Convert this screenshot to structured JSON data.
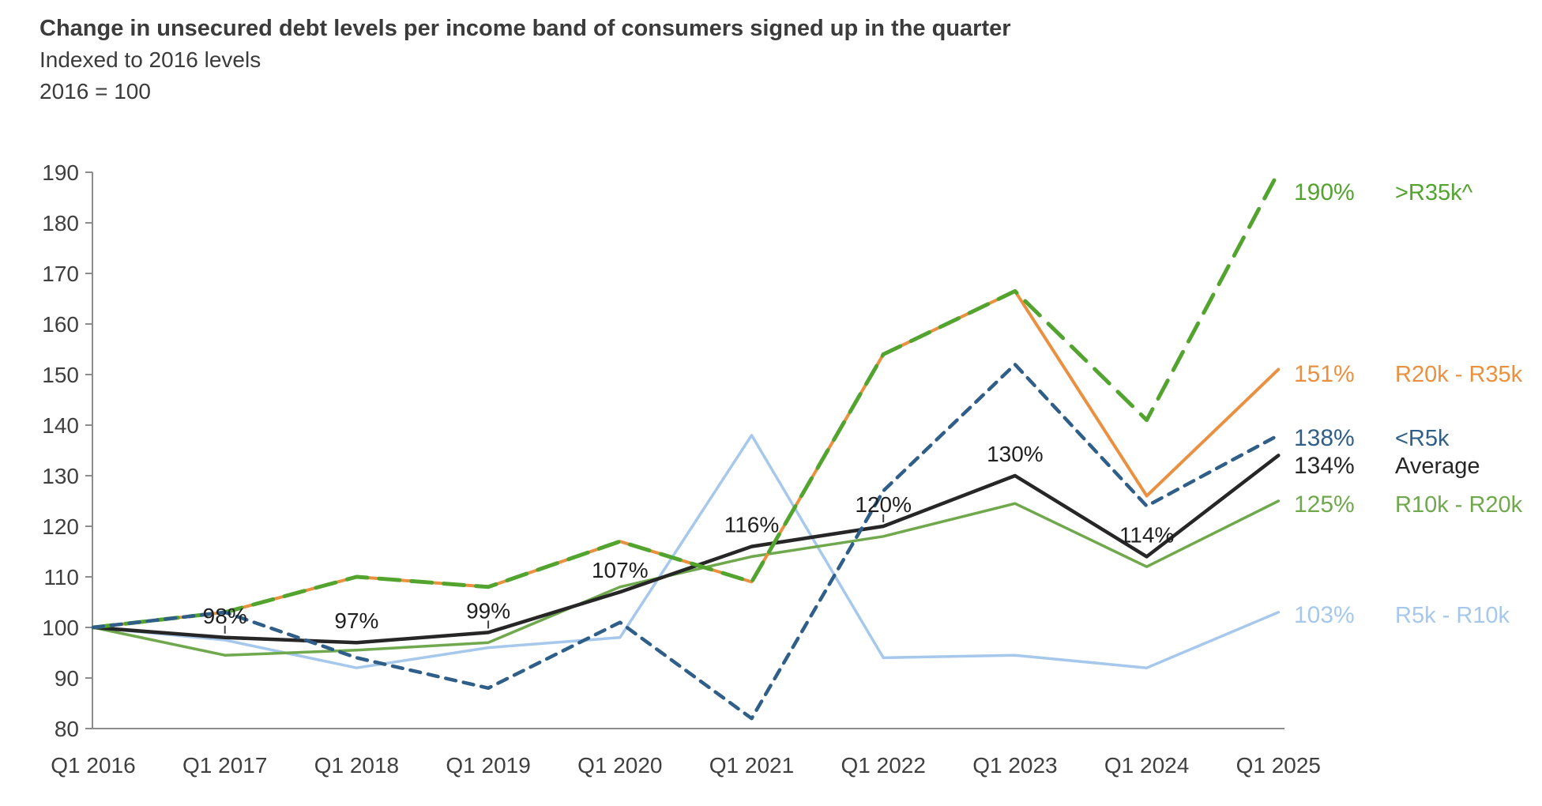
{
  "header": {
    "title": "Change in unsecured debt levels per income band of consumers signed up in the quarter",
    "subtitle": "Indexed to 2016 levels",
    "index_note": "2016 = 100"
  },
  "chart_data": {
    "type": "line",
    "title": "Change in unsecured debt levels per income band of consumers signed up in the quarter",
    "subtitle": "Indexed to 2016 levels",
    "note": "2016 = 100",
    "categories": [
      "Q1 2016",
      "Q1 2017",
      "Q1 2018",
      "Q1 2019",
      "Q1 2020",
      "Q1 2021",
      "Q1 2022",
      "Q1 2023",
      "Q1 2024",
      "Q1 2025"
    ],
    "ylim": [
      80,
      190
    ],
    "ytick_step": 10,
    "yticks": [
      80,
      90,
      100,
      110,
      120,
      130,
      140,
      150,
      160,
      170,
      180,
      190
    ],
    "grid": false,
    "legend_position": "right-end-labels",
    "series": [
      {
        "name": ">R35k^",
        "slug": "gt-r35k",
        "color": "#52A42F",
        "style": "dashed-long",
        "end_label": "190%",
        "values": [
          100,
          103,
          110,
          108,
          117,
          109,
          154,
          166.5,
          141,
          190
        ]
      },
      {
        "name": "R20k - R35k",
        "slug": "r20k-r35k",
        "color": "#EA9041",
        "style": "solid",
        "end_label": "151%",
        "values": [
          100,
          103,
          110,
          108,
          117,
          109,
          154,
          166.5,
          126,
          151
        ]
      },
      {
        "name": "<R5k",
        "slug": "lt-r5k",
        "color": "#2F5F88",
        "style": "dashed",
        "end_label": "138%",
        "values": [
          100,
          103,
          94,
          88,
          101,
          82,
          127,
          152,
          124,
          138
        ]
      },
      {
        "name": "Average",
        "slug": "average",
        "color": "#262626",
        "style": "solid",
        "end_label": "134%",
        "values": [
          100,
          98,
          97,
          99,
          107,
          116,
          120,
          130,
          114,
          134
        ]
      },
      {
        "name": "R10k - R20k",
        "slug": "r10k-r20k",
        "color": "#6FA84D",
        "style": "solid",
        "end_label": "125%",
        "values": [
          100,
          94.5,
          95.5,
          97,
          108,
          114,
          118,
          124.5,
          112,
          125
        ]
      },
      {
        "name": "R5k - R10k",
        "slug": "r5k-r10k",
        "color": "#A5C8EC",
        "style": "solid",
        "end_label": "103%",
        "values": [
          100,
          97.5,
          92,
          96,
          98,
          138,
          94,
          94.5,
          92,
          103
        ]
      }
    ],
    "point_labels": {
      "series": "Average",
      "labels": [
        "",
        "98%",
        "97%",
        "99%",
        "107%",
        "116%",
        "120%",
        "130%",
        "114%",
        ""
      ]
    }
  }
}
